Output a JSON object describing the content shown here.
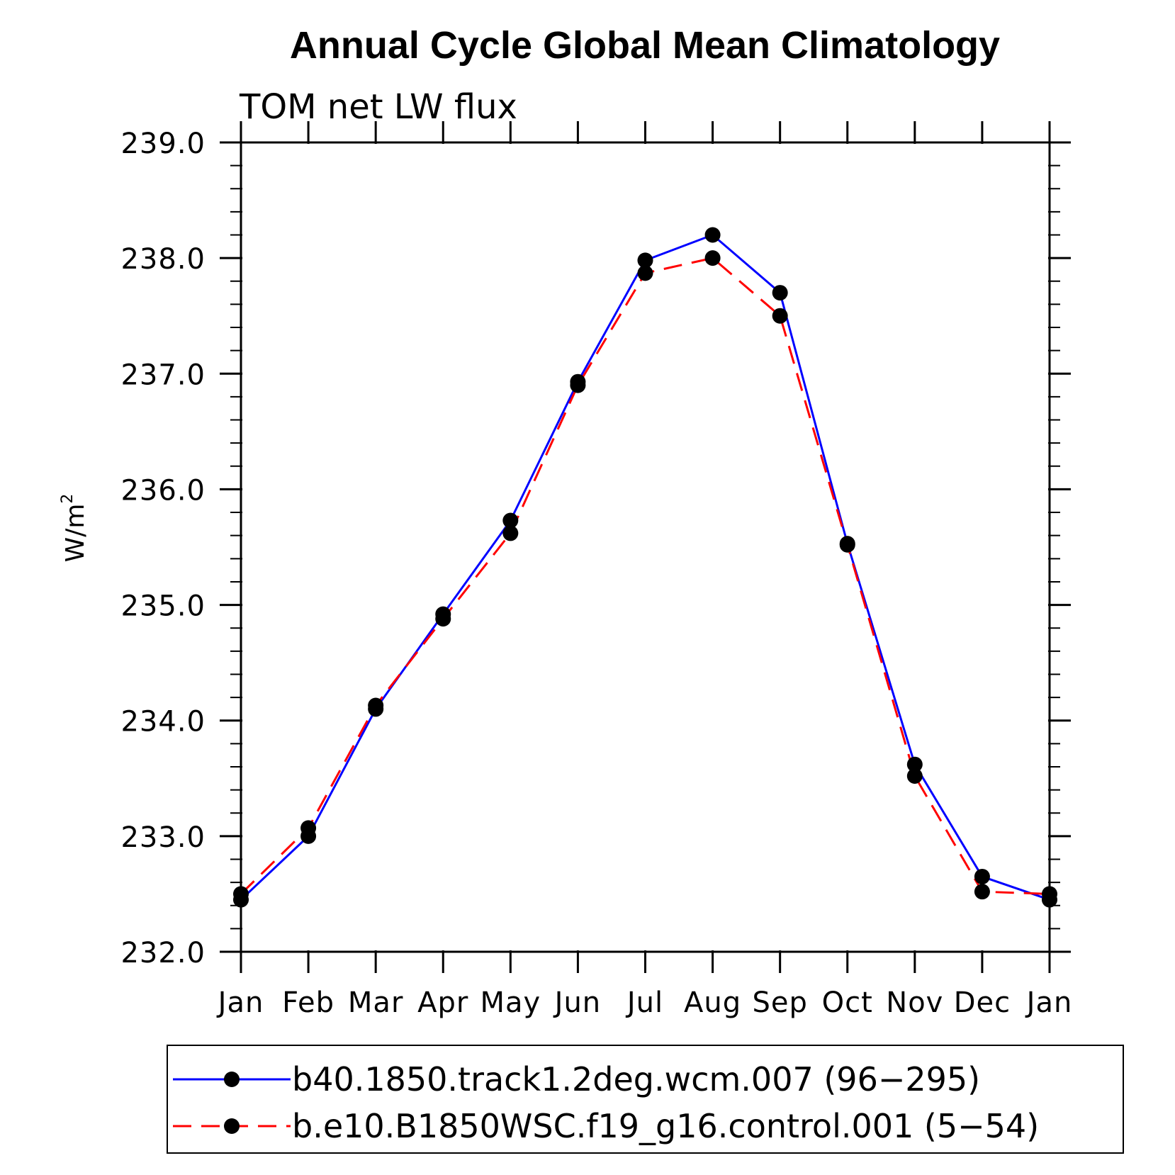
{
  "chart_data": {
    "type": "line",
    "title": "Annual Cycle Global Mean Climatology",
    "subtitle": "TOM net LW flux",
    "ylabel": "W/m",
    "ylabel_sup": "2",
    "ylim": [
      232.0,
      239.0
    ],
    "yticks": [
      "232.0",
      "233.0",
      "234.0",
      "235.0",
      "236.0",
      "237.0",
      "238.0",
      "239.0"
    ],
    "categories": [
      "Jan",
      "Feb",
      "Mar",
      "Apr",
      "May",
      "Jun",
      "Jul",
      "Aug",
      "Sep",
      "Oct",
      "Nov",
      "Dec",
      "Jan"
    ],
    "grid": false,
    "legend_position": "bottom",
    "series": [
      {
        "name": "b40.1850.track1.2deg.wcm.007 (96−295)",
        "color": "#0000ff",
        "line_style": "solid",
        "marker": "filled-circle",
        "values": [
          232.45,
          233.0,
          234.1,
          234.92,
          235.73,
          236.93,
          237.98,
          238.2,
          237.7,
          235.53,
          233.62,
          232.65,
          232.45
        ]
      },
      {
        "name": "b.e10.B1850WSC.f19_g16.control.001 (5−54)",
        "color": "#ff0000",
        "line_style": "dashed",
        "marker": "filled-circle",
        "values": [
          232.5,
          233.07,
          234.13,
          234.88,
          235.62,
          236.9,
          237.87,
          238.0,
          237.5,
          235.52,
          233.52,
          232.52,
          232.5
        ]
      }
    ]
  }
}
